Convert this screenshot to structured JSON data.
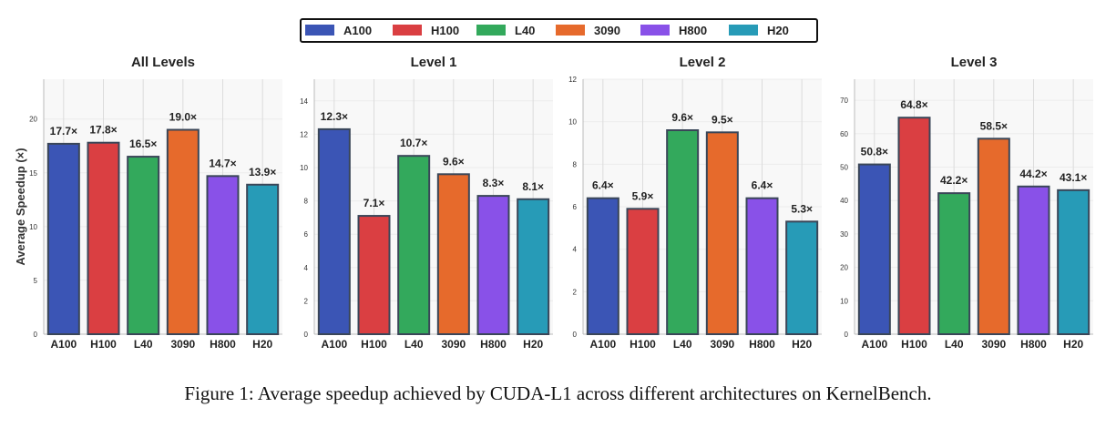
{
  "chart_data": {
    "type": "bar",
    "legend": {
      "placement": "top-center",
      "entries": [
        "A100",
        "H100",
        "L40",
        "3090",
        "H800",
        "H20"
      ]
    },
    "colors": {
      "A100": "#3b55b5",
      "H100": "#da3f42",
      "L40": "#33a95c",
      "3090": "#e66a2c",
      "H800": "#8951e8",
      "H20": "#279bb7"
    },
    "ylabel": "Average Speedup (×)",
    "categories": [
      "A100",
      "H100",
      "L40",
      "3090",
      "H800",
      "H20"
    ],
    "panels": [
      {
        "title": "All Levels",
        "values": [
          17.7,
          17.8,
          16.5,
          19.0,
          14.7,
          13.9
        ],
        "ylim": [
          0,
          23.7
        ],
        "yticks": [
          0,
          5,
          10,
          15,
          20
        ]
      },
      {
        "title": "Level 1",
        "values": [
          12.3,
          7.1,
          10.7,
          9.6,
          8.3,
          8.1
        ],
        "ylim": [
          0,
          15.3
        ],
        "yticks": [
          0,
          2,
          4,
          6,
          8,
          10,
          12,
          14
        ]
      },
      {
        "title": "Level 2",
        "values": [
          6.4,
          5.9,
          9.6,
          9.5,
          6.4,
          5.3
        ],
        "ylim": [
          0,
          12
        ],
        "yticks": [
          0,
          2,
          4,
          6,
          8,
          10,
          12
        ]
      },
      {
        "title": "Level 3",
        "values": [
          50.8,
          64.8,
          42.2,
          58.5,
          44.2,
          43.1
        ],
        "ylim": [
          0,
          76.3
        ],
        "yticks": [
          0,
          10,
          20,
          30,
          40,
          50,
          60,
          70
        ]
      }
    ],
    "label_suffix": "×"
  },
  "caption": "Figure 1: Average speedup achieved by CUDA-L1 across different architectures on KernelBench."
}
